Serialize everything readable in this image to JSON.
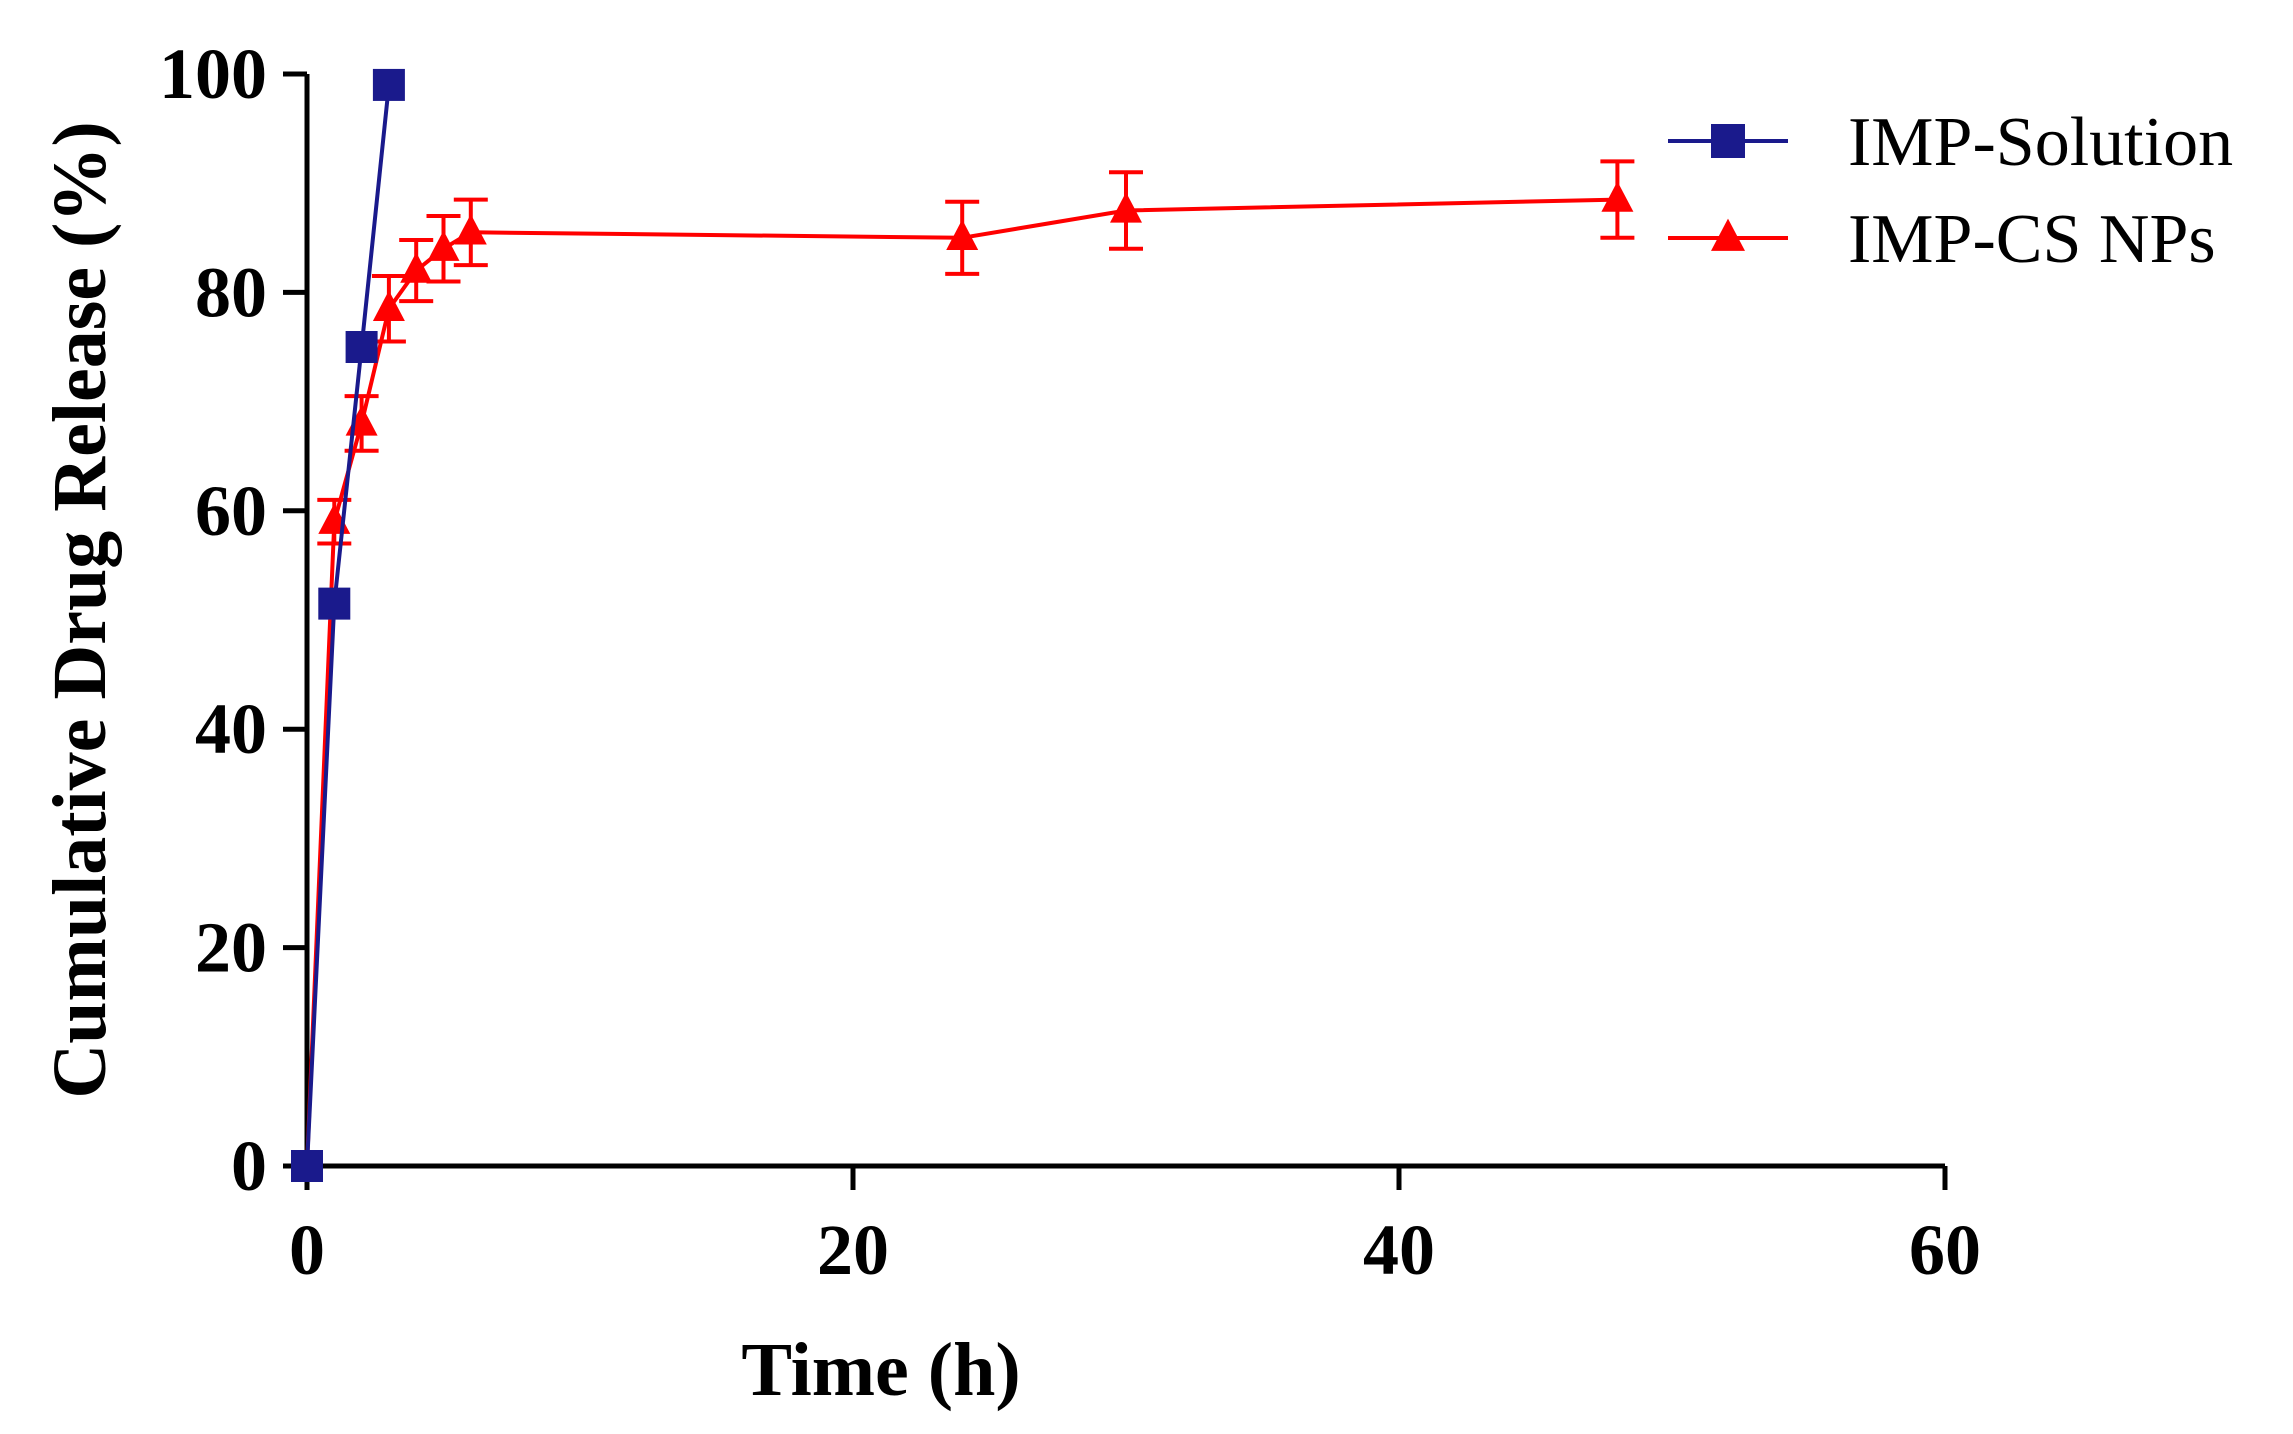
{
  "chart_data": {
    "type": "line",
    "xlabel": "Time (h)",
    "ylabel": "Cumulative Drug Release (%)",
    "xlim": [
      0,
      60
    ],
    "ylim": [
      0,
      100
    ],
    "xticks": [
      0,
      20,
      40,
      60
    ],
    "yticks": [
      0,
      20,
      40,
      60,
      80,
      100
    ],
    "grid": false,
    "legend_position": "top-right",
    "series": [
      {
        "name": "IMP-Solution",
        "color": "#1a1a8c",
        "marker": "square",
        "x": [
          0,
          1,
          2,
          3
        ],
        "y": [
          0,
          51.5,
          75,
          99
        ]
      },
      {
        "name": "IMP-CS NPs",
        "color": "#ff0000",
        "marker": "triangle",
        "x": [
          0,
          1,
          2,
          3,
          4,
          5,
          6,
          24,
          30,
          48
        ],
        "y": [
          0,
          59,
          68,
          78.5,
          82,
          84,
          85.5,
          85,
          87.5,
          88.5
        ],
        "err": [
          0,
          2,
          2.5,
          3,
          2.8,
          3,
          3,
          3.3,
          3.5,
          3.5
        ]
      }
    ]
  }
}
